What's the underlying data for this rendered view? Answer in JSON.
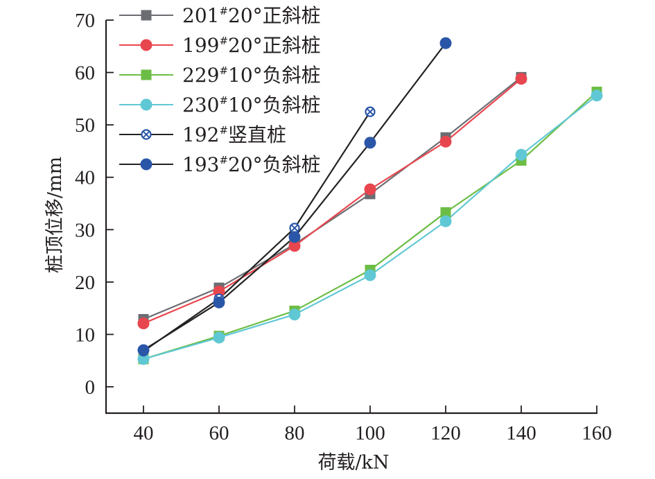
{
  "chart_data": {
    "type": "line",
    "title": "",
    "xlabel": "荷载/kN",
    "ylabel": "桩顶位移/mm",
    "xlim": [
      30,
      160
    ],
    "ylim": [
      -5,
      70
    ],
    "xticks": [
      40,
      60,
      80,
      100,
      120,
      140,
      160
    ],
    "yticks": [
      0,
      10,
      20,
      30,
      40,
      50,
      60,
      70
    ],
    "grid": false,
    "legend_position": "top-left",
    "series": [
      {
        "name": "201#20°正斜桩",
        "label_num": "201",
        "label_sup": "#",
        "label_rest": "20°正斜桩",
        "color": "#6b6d72",
        "line_color": "#6b6d72",
        "marker": "square",
        "x": [
          40,
          60,
          80,
          100,
          120,
          140
        ],
        "y": [
          12.9,
          18.9,
          27.2,
          36.8,
          47.6,
          59.1
        ]
      },
      {
        "name": "199#20°正斜桩",
        "label_num": "199",
        "label_sup": "#",
        "label_rest": "20°正斜桩",
        "color": "#e8464e",
        "line_color": "#e8464e",
        "marker": "circle",
        "x": [
          40,
          60,
          80,
          100,
          120,
          140
        ],
        "y": [
          12.1,
          18.2,
          26.9,
          37.7,
          46.8,
          58.8
        ]
      },
      {
        "name": "229#10°负斜桩",
        "label_num": "229",
        "label_sup": "#",
        "label_rest": "10°负斜桩",
        "color": "#6cbd45",
        "line_color": "#6cbd45",
        "marker": "square",
        "x": [
          40,
          60,
          80,
          100,
          120,
          140,
          160
        ],
        "y": [
          5.3,
          9.7,
          14.5,
          22.3,
          33.3,
          43.2,
          56.3
        ]
      },
      {
        "name": "230#10°负斜桩",
        "label_num": "230",
        "label_sup": "#",
        "label_rest": "10°负斜桩",
        "color": "#60c8d4",
        "line_color": "#60c8d4",
        "marker": "circle",
        "x": [
          40,
          60,
          80,
          100,
          120,
          140,
          160
        ],
        "y": [
          5.3,
          9.4,
          13.8,
          21.3,
          31.6,
          44.3,
          55.6
        ]
      },
      {
        "name": "192#竖直桩",
        "label_num": "192",
        "label_sup": "#",
        "label_rest": "竖直桩",
        "color": "#2a56a8",
        "line_color": "#222222",
        "marker": "circle-x",
        "x": [
          40,
          60,
          80,
          100
        ],
        "y": [
          6.8,
          16.8,
          30.3,
          52.5
        ]
      },
      {
        "name": "193#20°负斜桩",
        "label_num": "193",
        "label_sup": "#",
        "label_rest": "20°负斜桩",
        "color": "#2a56a8",
        "line_color": "#222222",
        "marker": "circle",
        "x": [
          40,
          60,
          80,
          100,
          120
        ],
        "y": [
          7.0,
          16.1,
          28.6,
          46.6,
          65.6
        ]
      }
    ]
  }
}
